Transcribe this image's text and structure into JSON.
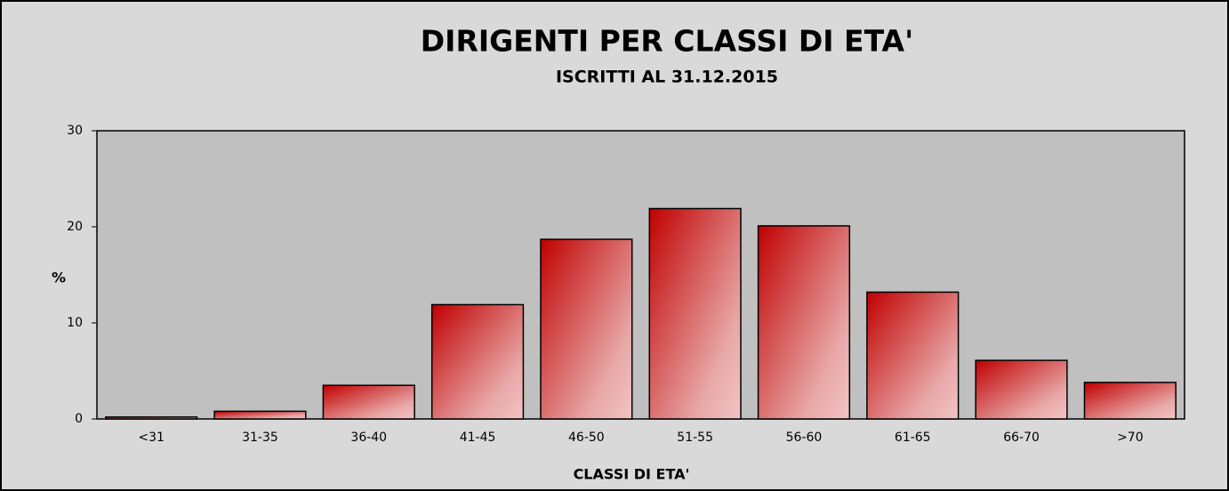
{
  "chart_data": {
    "type": "bar",
    "title": "DIRIGENTI PER CLASSI DI ETA'",
    "subtitle": "ISCRITTI AL 31.12.2015",
    "x_label": "CLASSI DI ETA'",
    "y_label": "%",
    "categories": [
      "<31",
      "31-35",
      "36-40",
      "41-45",
      "46-50",
      "51-55",
      "56-60",
      "61-65",
      "66-70",
      ">70"
    ],
    "values": [
      0.2,
      0.8,
      3.5,
      11.9,
      18.7,
      21.9,
      20.1,
      13.2,
      6.1,
      3.8
    ],
    "color": "#c00000",
    "ylim": [
      0,
      30
    ],
    "yticks": [
      0,
      10,
      20,
      30
    ],
    "grid": false
  }
}
